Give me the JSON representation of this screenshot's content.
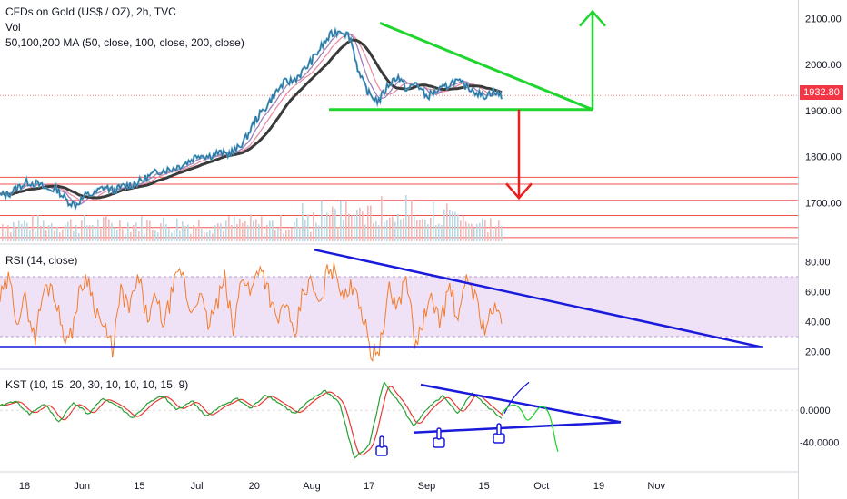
{
  "colors": {
    "price": "#2a6f9e",
    "price_wick": "#60a9c8",
    "ma50": "#9c7fb8",
    "ma100": "#e98fa5",
    "ma200": "#3a3a3a",
    "rsi_line": "#f57c2a",
    "rsi_band": "#efe2f7",
    "kst_line": "#26a030",
    "kst_signal": "#e53935",
    "trend_green": "#21d52f",
    "trend_blue": "#1a1adb",
    "red_arrow": "#e81f1f",
    "level_line": "#ef5350",
    "accent": "#f23645"
  },
  "legend": {
    "title": "CFDs on Gold (US$ / OZ), 2h, TVC",
    "vol": "Vol",
    "ma": "50,100,200 MA (50, close, 100, close, 200, close)",
    "rsi": "RSI (14, close)",
    "kst": "KST (10, 15, 20, 30, 10, 10, 10, 15, 9)"
  },
  "current_price": "1932.80",
  "chart_data": [
    {
      "type": "line",
      "panel": "price",
      "ylim": [
        1610,
        2140
      ],
      "yticks": [
        "2100.00",
        "2000.00",
        "1900.00",
        "1800.00",
        "1700.00"
      ],
      "ytick_values": [
        2100,
        2000,
        1900,
        1800,
        1700
      ],
      "xticks": [
        "18",
        "Jun",
        "15",
        "Jul",
        "20",
        "Aug",
        "17",
        "Sep",
        "15",
        "Oct",
        "19",
        "Nov"
      ],
      "series": [
        {
          "values": [
            1715,
            1720,
            1735,
            1745,
            1740,
            1728,
            1730,
            1705,
            1695,
            1715,
            1720,
            1735,
            1725,
            1735,
            1740,
            1748,
            1760,
            1770,
            1772,
            1780,
            1790,
            1805,
            1800,
            1808,
            1805,
            1815,
            1840,
            1880,
            1905,
            1935,
            1960,
            1965,
            1985,
            2010,
            2040,
            2065,
            2075,
            2060,
            1975,
            1935,
            1920,
            1955,
            1975,
            1945,
            1960,
            1930,
            1940,
            1950,
            1965,
            1955,
            1945,
            1930,
            1940,
            1932
          ]
        }
      ],
      "levels": [
        1755,
        1740,
        1705,
        1672,
        1646,
        1624
      ],
      "annotations": {
        "triangle_upper_start": 2090,
        "triangle_lower": 1902,
        "arrow_up_target": 2115,
        "arrow_down_target": 1710
      }
    },
    {
      "type": "line",
      "panel": "rsi",
      "ylim": [
        10,
        90
      ],
      "band": [
        30,
        70
      ],
      "yticks": [
        "80.00",
        "60.00",
        "40.00",
        "20.00"
      ],
      "ytick_values": [
        80,
        60,
        40,
        20
      ],
      "support_level": 23,
      "series": [
        {
          "values": [
            55,
            68,
            42,
            55,
            28,
            60,
            65,
            40,
            25,
            55,
            72,
            50,
            35,
            22,
            60,
            48,
            70,
            42,
            55,
            38,
            62,
            75,
            45,
            60,
            38,
            50,
            68,
            32,
            74,
            58,
            80,
            62,
            38,
            55,
            25,
            60,
            66,
            48,
            78,
            70,
            55,
            68,
            42,
            18,
            25,
            60,
            50,
            72,
            22,
            42,
            55,
            40,
            65,
            38,
            72,
            55,
            35,
            48,
            42
          ]
        }
      ]
    },
    {
      "type": "line",
      "panel": "kst",
      "ylim": [
        -75,
        48
      ],
      "yticks": [
        "0.0000",
        "-40.0000"
      ],
      "ytick_values": [
        0,
        -40
      ],
      "series": [
        {
          "values": [
            5,
            12,
            -5,
            8,
            -15,
            10,
            -5,
            15,
            5,
            -10,
            8,
            18,
            0,
            12,
            -8,
            5,
            15,
            2,
            20,
            8,
            -5,
            12,
            25,
            10,
            -60,
            -45,
            35,
            12,
            -20,
            2,
            18,
            -5,
            22,
            5,
            -10
          ]
        }
      ],
      "annotations": {
        "triangle_upper_start": 32,
        "triangle_lower_start": -28,
        "triangle_apex": -15
      }
    }
  ]
}
